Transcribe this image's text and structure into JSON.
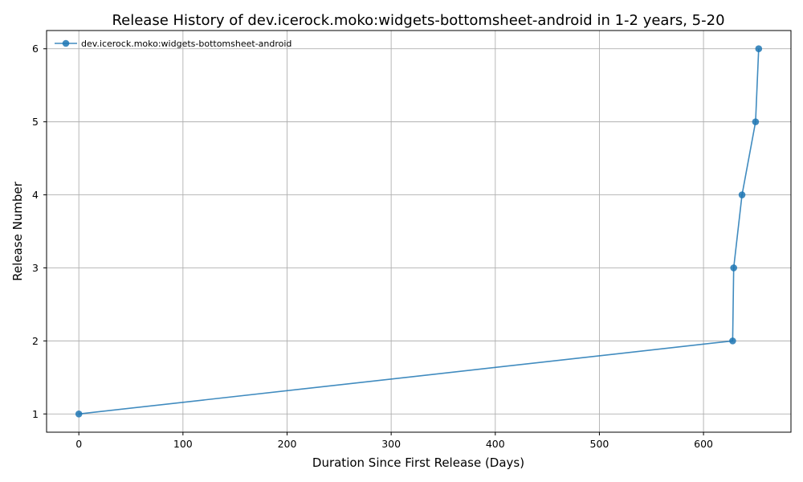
{
  "chart_data": {
    "type": "line",
    "title": "Release History of dev.icerock.moko:widgets-bottomsheet-android in 1-2 years, 5-20",
    "xlabel": "Duration Since First Release (Days)",
    "ylabel": "Release Number",
    "xlim": [
      -31,
      684
    ],
    "ylim": [
      0.75,
      6.25
    ],
    "xticks": [
      0,
      100,
      200,
      300,
      400,
      500,
      600
    ],
    "yticks": [
      1,
      2,
      3,
      4,
      5,
      6
    ],
    "grid": true,
    "legend_position": "top-left",
    "series": [
      {
        "name": "dev.icerock.moko:widgets-bottomsheet-android",
        "color": "#1f77b4",
        "marker": "circle",
        "x": [
          0,
          628,
          629,
          637,
          650,
          653
        ],
        "y": [
          1,
          2,
          3,
          4,
          5,
          6
        ]
      }
    ]
  }
}
